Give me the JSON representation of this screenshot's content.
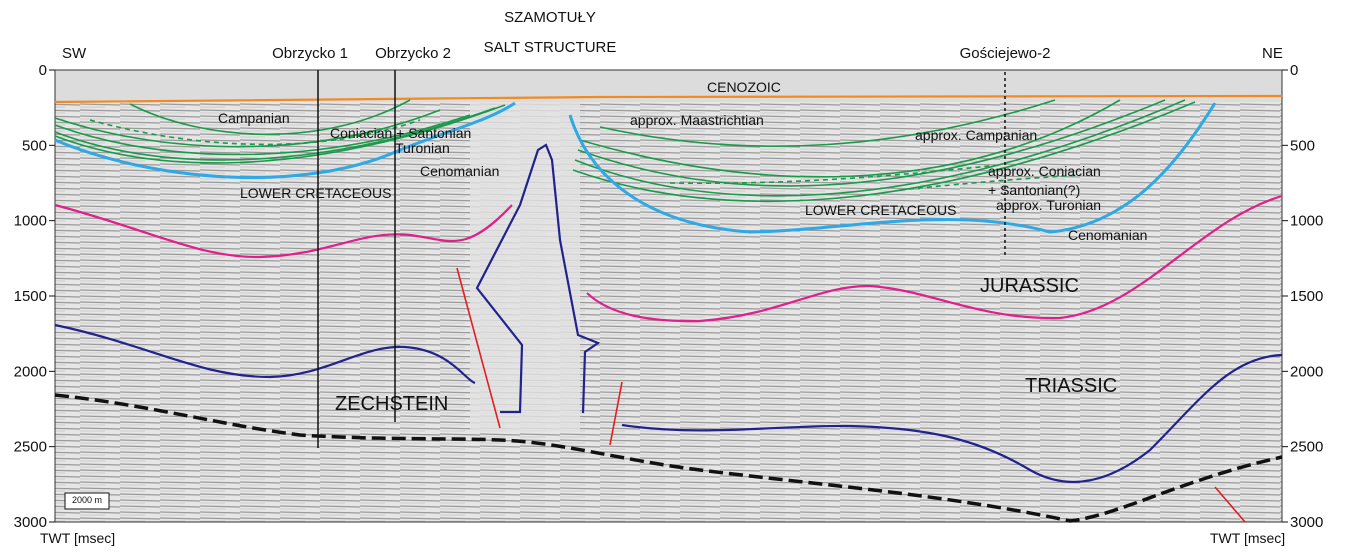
{
  "header": {
    "left": "SW",
    "right": "NE",
    "title_line1": "SZAMOTUŁY",
    "title_line2": "SALT STRUCTURE"
  },
  "wells": [
    "Obrzycko 1",
    "Obrzycko 2",
    "Gościejewo-2"
  ],
  "axis": {
    "ylim": [
      0,
      3000
    ],
    "ticks": [
      0,
      500,
      1000,
      1500,
      2000,
      2500,
      3000
    ],
    "label": "TWT [msec]"
  },
  "units": [
    "CENOZOIC",
    "Campanian",
    "Coniacian + Santonian",
    "Turonian",
    "Cenomanian",
    "LOWER CRETACEOUS",
    "approx. Maastrichtian",
    "approx. Campanian",
    "approx. Coniacian",
    "+ Santonian(?)",
    "LOWER CRETACEOUS",
    "approx. Turonian",
    "Cenomanian",
    "JURASSIC",
    "TRIASSIC",
    "ZECHSTEIN"
  ],
  "scale_bar": "2000 m"
}
